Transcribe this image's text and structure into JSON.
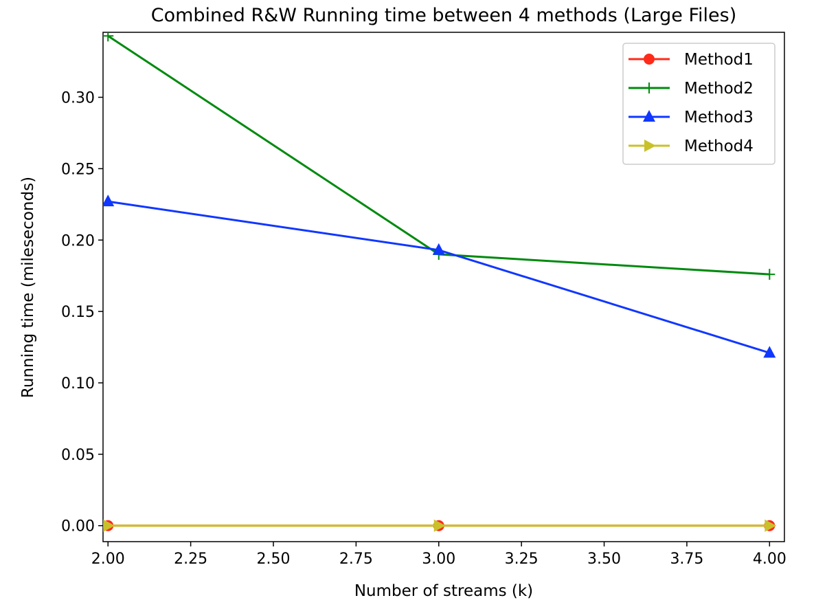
{
  "chart_data": {
    "type": "line",
    "title": "Combined R&W Running time between 4 methods (Large Files)",
    "xlabel": "Number of streams (k)",
    "ylabel": "Running time (mileseconds)",
    "xlim": [
      1.985,
      4.045
    ],
    "ylim": [
      -0.0112,
      0.3455
    ],
    "x_ticks": [
      2.0,
      2.25,
      2.5,
      2.75,
      3.0,
      3.25,
      3.5,
      3.75,
      4.0
    ],
    "x_tick_labels": [
      "2.00",
      "2.25",
      "2.50",
      "2.75",
      "3.00",
      "3.25",
      "3.50",
      "3.75",
      "4.00"
    ],
    "y_ticks": [
      0.0,
      0.05,
      0.1,
      0.15,
      0.2,
      0.25,
      0.3
    ],
    "y_tick_labels": [
      "0.00",
      "0.05",
      "0.10",
      "0.15",
      "0.20",
      "0.25",
      "0.30"
    ],
    "x": [
      2,
      3,
      4
    ],
    "series": [
      {
        "name": "Method1",
        "values": [
          0.0,
          0.0,
          0.0
        ],
        "color": "#ff2a1a",
        "marker": "circle"
      },
      {
        "name": "Method2",
        "values": [
          0.343,
          0.19,
          0.176
        ],
        "color": "#008a0e",
        "marker": "plus"
      },
      {
        "name": "Method3",
        "values": [
          0.227,
          0.193,
          0.121
        ],
        "color": "#1037ff",
        "marker": "triangle-up"
      },
      {
        "name": "Method4",
        "values": [
          0.0,
          0.0,
          0.0
        ],
        "color": "#c9c12a",
        "marker": "triangle-right"
      }
    ],
    "legend_position": "top-right",
    "grid": false
  }
}
